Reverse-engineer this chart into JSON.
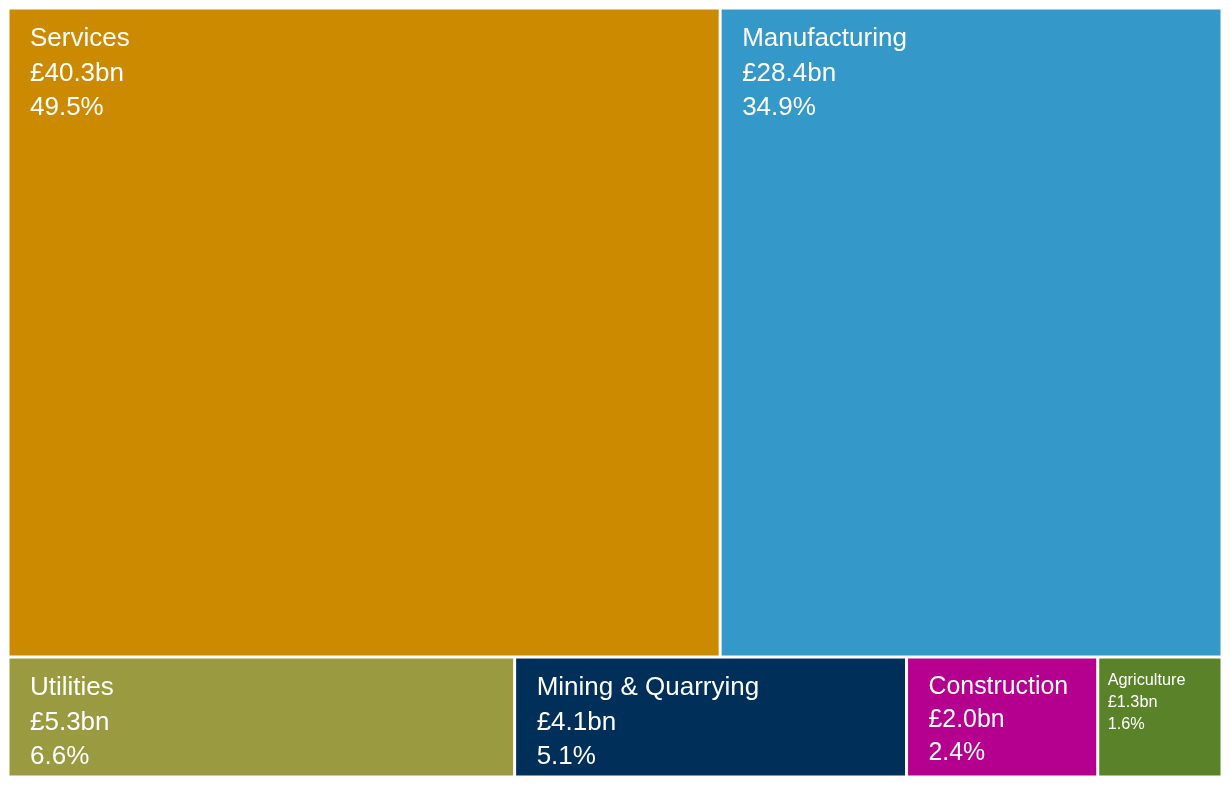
{
  "chart_data": {
    "type": "other",
    "categories": [
      "Services",
      "Manufacturing",
      "Utilities",
      "Mining & Quarrying",
      "Construction",
      "Agriculture"
    ],
    "values": [
      40.3,
      28.4,
      5.3,
      4.1,
      2.0,
      1.3
    ],
    "value_labels": [
      "£40.3bn",
      "£28.4bn",
      "£5.3bn",
      "£4.1bn",
      "£2.0bn",
      "£1.3bn"
    ],
    "colors": [
      "#cc8a00",
      "#3498c9",
      "#9a9a40",
      "#00305a",
      "#b5008f",
      "#5a8228"
    ],
    "annotations": [
      {
        "text": "49.5%",
        "x": "Services"
      },
      {
        "text": "34.9%",
        "x": "Manufacturing"
      },
      {
        "text": "6.6%",
        "x": "Utilities"
      },
      {
        "text": "5.1%",
        "x": "Mining & Quarrying"
      },
      {
        "text": "2.4%",
        "x": "Construction"
      },
      {
        "text": "1.6%",
        "x": "Agriculture"
      }
    ]
  }
}
